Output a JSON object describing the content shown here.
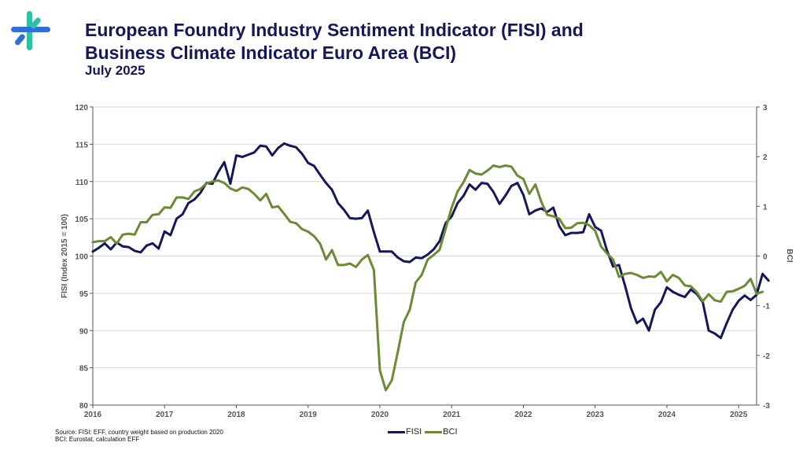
{
  "header": {
    "title_line1": "European Foundry Industry Sentiment Indicator (FISI) and",
    "title_line2": "Business Climate Indicator Euro Area (BCI)",
    "subtitle": "July 2025"
  },
  "logo": {
    "icon": "eff-logo-icon",
    "colors": [
      "#2fc1a5",
      "#2f6fd8"
    ]
  },
  "footer": {
    "source_line1": "Source: FISI: EFF, country weight based on production 2020",
    "source_line2": "BCI: Eurostat, calculation EFF"
  },
  "chart_data": {
    "type": "line",
    "ylabel_left": "FISI (Index 2015 = 100)",
    "ylabel_right": "BCI",
    "ylim_left": [
      80,
      120
    ],
    "ylim_right": [
      -3,
      3
    ],
    "yticks_left": [
      "80",
      "85",
      "90",
      "95",
      "100",
      "105",
      "110",
      "115",
      "120"
    ],
    "yticks_right": [
      "-3",
      "-2",
      "-1",
      "0",
      "1",
      "2",
      "3"
    ],
    "xlim": [
      2016.0,
      2025.25
    ],
    "xticks": [
      "2016",
      "2017",
      "2018",
      "2019",
      "2020",
      "2021",
      "2022",
      "2023",
      "2024",
      "2025"
    ],
    "grid": "horizontal",
    "legend_position": "bottom-center",
    "series": [
      {
        "name": "FISI",
        "axis": "left",
        "color": "#14185a",
        "points": [
          [
            2016.0,
            100.6
          ],
          [
            2016.083,
            101.1
          ],
          [
            2016.167,
            101.7
          ],
          [
            2016.25,
            100.9
          ],
          [
            2016.333,
            101.8
          ],
          [
            2016.417,
            101.3
          ],
          [
            2016.5,
            101.2
          ],
          [
            2016.583,
            100.7
          ],
          [
            2016.667,
            100.5
          ],
          [
            2016.75,
            101.4
          ],
          [
            2016.833,
            101.7
          ],
          [
            2016.917,
            101.0
          ],
          [
            2017.0,
            103.3
          ],
          [
            2017.083,
            102.8
          ],
          [
            2017.167,
            105.0
          ],
          [
            2017.25,
            105.6
          ],
          [
            2017.333,
            107.1
          ],
          [
            2017.417,
            107.6
          ],
          [
            2017.5,
            108.5
          ],
          [
            2017.583,
            109.8
          ],
          [
            2017.667,
            109.7
          ],
          [
            2017.75,
            111.3
          ],
          [
            2017.833,
            112.6
          ],
          [
            2017.917,
            109.7
          ],
          [
            2018.0,
            113.5
          ],
          [
            2018.083,
            113.3
          ],
          [
            2018.167,
            113.6
          ],
          [
            2018.25,
            113.9
          ],
          [
            2018.333,
            114.8
          ],
          [
            2018.417,
            114.7
          ],
          [
            2018.5,
            113.5
          ],
          [
            2018.583,
            114.5
          ],
          [
            2018.667,
            115.1
          ],
          [
            2018.75,
            114.8
          ],
          [
            2018.833,
            114.6
          ],
          [
            2018.917,
            113.7
          ],
          [
            2019.0,
            112.5
          ],
          [
            2019.083,
            112.1
          ],
          [
            2019.167,
            110.9
          ],
          [
            2019.25,
            109.8
          ],
          [
            2019.333,
            108.9
          ],
          [
            2019.417,
            107.1
          ],
          [
            2019.5,
            106.2
          ],
          [
            2019.583,
            105.1
          ],
          [
            2019.667,
            105.0
          ],
          [
            2019.75,
            105.1
          ],
          [
            2019.833,
            106.1
          ],
          [
            2019.917,
            103.2
          ],
          [
            2020.0,
            100.6
          ],
          [
            2020.083,
            100.6
          ],
          [
            2020.167,
            100.6
          ],
          [
            2020.25,
            99.8
          ],
          [
            2020.333,
            99.3
          ],
          [
            2020.417,
            99.2
          ],
          [
            2020.5,
            99.8
          ],
          [
            2020.583,
            99.7
          ],
          [
            2020.667,
            100.2
          ],
          [
            2020.75,
            100.9
          ],
          [
            2020.833,
            102.0
          ],
          [
            2020.917,
            104.4
          ],
          [
            2021.0,
            105.3
          ],
          [
            2021.083,
            107.1
          ],
          [
            2021.167,
            108.1
          ],
          [
            2021.25,
            109.6
          ],
          [
            2021.333,
            108.9
          ],
          [
            2021.417,
            109.8
          ],
          [
            2021.5,
            109.7
          ],
          [
            2021.583,
            108.6
          ],
          [
            2021.667,
            107.0
          ],
          [
            2021.75,
            108.1
          ],
          [
            2021.833,
            109.4
          ],
          [
            2021.917,
            109.8
          ],
          [
            2022.0,
            108.2
          ],
          [
            2022.083,
            105.6
          ],
          [
            2022.167,
            106.1
          ],
          [
            2022.25,
            106.4
          ],
          [
            2022.333,
            105.9
          ],
          [
            2022.417,
            106.5
          ],
          [
            2022.5,
            104.0
          ],
          [
            2022.583,
            102.8
          ],
          [
            2022.667,
            103.1
          ],
          [
            2022.75,
            103.1
          ],
          [
            2022.833,
            103.2
          ],
          [
            2022.917,
            105.6
          ],
          [
            2023.0,
            103.9
          ],
          [
            2023.083,
            103.4
          ],
          [
            2023.167,
            100.7
          ],
          [
            2023.25,
            98.6
          ],
          [
            2023.333,
            98.8
          ],
          [
            2023.417,
            96.0
          ],
          [
            2023.5,
            93.0
          ],
          [
            2023.583,
            91.0
          ],
          [
            2023.667,
            91.6
          ],
          [
            2023.75,
            90.0
          ],
          [
            2023.833,
            92.8
          ],
          [
            2023.917,
            93.8
          ],
          [
            2024.0,
            95.8
          ],
          [
            2024.083,
            95.2
          ],
          [
            2024.167,
            94.8
          ],
          [
            2024.25,
            94.5
          ],
          [
            2024.333,
            95.5
          ],
          [
            2024.417,
            94.9
          ],
          [
            2024.5,
            93.8
          ],
          [
            2024.583,
            90.0
          ],
          [
            2024.667,
            89.6
          ],
          [
            2024.75,
            89.0
          ],
          [
            2024.833,
            91.0
          ],
          [
            2024.917,
            92.8
          ],
          [
            2025.0,
            94.0
          ],
          [
            2025.083,
            94.7
          ],
          [
            2025.167,
            94.1
          ],
          [
            2025.25,
            94.8
          ],
          [
            2025.333,
            97.6
          ],
          [
            2025.417,
            96.7
          ]
        ]
      },
      {
        "name": "BCI",
        "axis": "right",
        "color": "#6a8a36",
        "points": [
          [
            2016.0,
            0.28
          ],
          [
            2016.083,
            0.3
          ],
          [
            2016.167,
            0.3
          ],
          [
            2016.25,
            0.38
          ],
          [
            2016.333,
            0.25
          ],
          [
            2016.417,
            0.43
          ],
          [
            2016.5,
            0.45
          ],
          [
            2016.583,
            0.43
          ],
          [
            2016.667,
            0.68
          ],
          [
            2016.75,
            0.68
          ],
          [
            2016.833,
            0.83
          ],
          [
            2016.917,
            0.84
          ],
          [
            2017.0,
            0.98
          ],
          [
            2017.083,
            0.97
          ],
          [
            2017.167,
            1.18
          ],
          [
            2017.25,
            1.18
          ],
          [
            2017.333,
            1.15
          ],
          [
            2017.417,
            1.3
          ],
          [
            2017.5,
            1.35
          ],
          [
            2017.583,
            1.46
          ],
          [
            2017.667,
            1.5
          ],
          [
            2017.75,
            1.52
          ],
          [
            2017.833,
            1.47
          ],
          [
            2017.917,
            1.36
          ],
          [
            2018.0,
            1.31
          ],
          [
            2018.083,
            1.38
          ],
          [
            2018.167,
            1.35
          ],
          [
            2018.25,
            1.25
          ],
          [
            2018.333,
            1.12
          ],
          [
            2018.417,
            1.25
          ],
          [
            2018.5,
            0.98
          ],
          [
            2018.583,
            1.0
          ],
          [
            2018.667,
            0.85
          ],
          [
            2018.75,
            0.69
          ],
          [
            2018.833,
            0.66
          ],
          [
            2018.917,
            0.54
          ],
          [
            2019.0,
            0.49
          ],
          [
            2019.083,
            0.4
          ],
          [
            2019.167,
            0.25
          ],
          [
            2019.25,
            -0.07
          ],
          [
            2019.333,
            0.12
          ],
          [
            2019.417,
            -0.18
          ],
          [
            2019.5,
            -0.18
          ],
          [
            2019.583,
            -0.15
          ],
          [
            2019.667,
            -0.22
          ],
          [
            2019.75,
            -0.07
          ],
          [
            2019.833,
            0.02
          ],
          [
            2019.917,
            -0.28
          ],
          [
            2020.0,
            -2.3
          ],
          [
            2020.083,
            -2.7
          ],
          [
            2020.167,
            -2.5
          ],
          [
            2020.25,
            -1.93
          ],
          [
            2020.333,
            -1.33
          ],
          [
            2020.417,
            -1.08
          ],
          [
            2020.5,
            -0.53
          ],
          [
            2020.583,
            -0.38
          ],
          [
            2020.667,
            -0.07
          ],
          [
            2020.75,
            0.02
          ],
          [
            2020.833,
            0.13
          ],
          [
            2020.917,
            0.55
          ],
          [
            2021.0,
            0.97
          ],
          [
            2021.083,
            1.3
          ],
          [
            2021.167,
            1.49
          ],
          [
            2021.25,
            1.73
          ],
          [
            2021.333,
            1.66
          ],
          [
            2021.417,
            1.64
          ],
          [
            2021.5,
            1.72
          ],
          [
            2021.583,
            1.82
          ],
          [
            2021.667,
            1.79
          ],
          [
            2021.75,
            1.82
          ],
          [
            2021.833,
            1.8
          ],
          [
            2021.917,
            1.62
          ],
          [
            2022.0,
            1.55
          ],
          [
            2022.083,
            1.25
          ],
          [
            2022.167,
            1.44
          ],
          [
            2022.25,
            1.09
          ],
          [
            2022.333,
            0.83
          ],
          [
            2022.417,
            0.8
          ],
          [
            2022.5,
            0.75
          ],
          [
            2022.583,
            0.56
          ],
          [
            2022.667,
            0.57
          ],
          [
            2022.75,
            0.66
          ],
          [
            2022.833,
            0.67
          ],
          [
            2022.917,
            0.62
          ],
          [
            2023.0,
            0.51
          ],
          [
            2023.083,
            0.19
          ],
          [
            2023.167,
            0.05
          ],
          [
            2023.25,
            -0.07
          ],
          [
            2023.333,
            -0.42
          ],
          [
            2023.417,
            -0.36
          ],
          [
            2023.5,
            -0.34
          ],
          [
            2023.583,
            -0.38
          ],
          [
            2023.667,
            -0.44
          ],
          [
            2023.75,
            -0.41
          ],
          [
            2023.833,
            -0.42
          ],
          [
            2023.917,
            -0.32
          ],
          [
            2024.0,
            -0.51
          ],
          [
            2024.083,
            -0.38
          ],
          [
            2024.167,
            -0.44
          ],
          [
            2024.25,
            -0.59
          ],
          [
            2024.333,
            -0.61
          ],
          [
            2024.417,
            -0.73
          ],
          [
            2024.5,
            -0.91
          ],
          [
            2024.583,
            -0.77
          ],
          [
            2024.667,
            -0.89
          ],
          [
            2024.75,
            -0.92
          ],
          [
            2024.833,
            -0.72
          ],
          [
            2024.917,
            -0.71
          ],
          [
            2025.0,
            -0.66
          ],
          [
            2025.083,
            -0.6
          ],
          [
            2025.167,
            -0.46
          ],
          [
            2025.25,
            -0.76
          ],
          [
            2025.333,
            -0.72
          ]
        ]
      }
    ]
  }
}
